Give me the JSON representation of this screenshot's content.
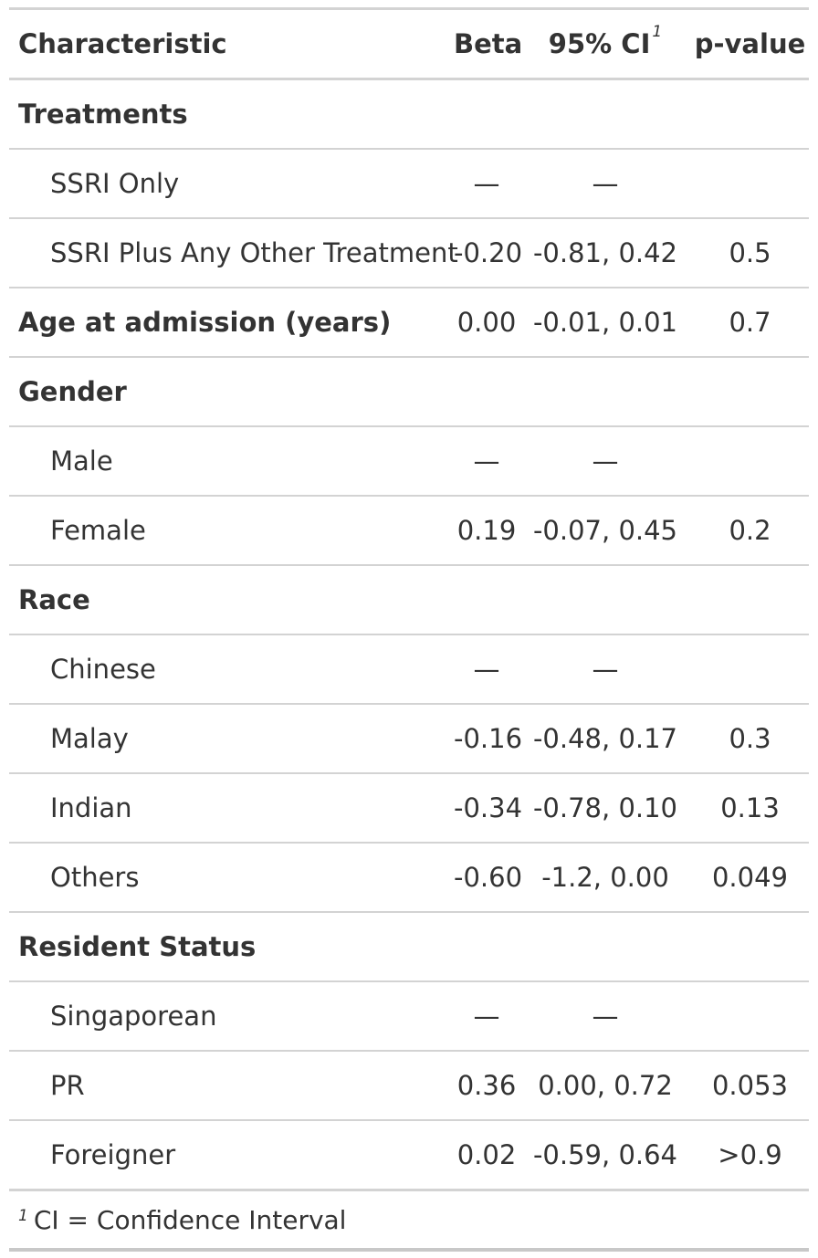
{
  "table": {
    "headers": {
      "characteristic": "Characteristic",
      "beta": "Beta",
      "ci": "95% CI",
      "ci_marker": "1",
      "pvalue": "p-value"
    },
    "rows": [
      {
        "label": "Treatments",
        "beta": "",
        "ci": "",
        "p": "",
        "level": "group"
      },
      {
        "label": "SSRI Only",
        "beta": "—",
        "ci": "—",
        "p": "",
        "level": "sub"
      },
      {
        "label": "SSRI Plus Any Other Treatment",
        "beta": "-0.20",
        "ci": "-0.81, 0.42",
        "p": "0.5",
        "level": "sub"
      },
      {
        "label": "Age at admission (years)",
        "beta": "0.00",
        "ci": "-0.01, 0.01",
        "p": "0.7",
        "level": "group"
      },
      {
        "label": "Gender",
        "beta": "",
        "ci": "",
        "p": "",
        "level": "group"
      },
      {
        "label": "Male",
        "beta": "—",
        "ci": "—",
        "p": "",
        "level": "sub"
      },
      {
        "label": "Female",
        "beta": "0.19",
        "ci": "-0.07, 0.45",
        "p": "0.2",
        "level": "sub"
      },
      {
        "label": "Race",
        "beta": "",
        "ci": "",
        "p": "",
        "level": "group"
      },
      {
        "label": "Chinese",
        "beta": "—",
        "ci": "—",
        "p": "",
        "level": "sub"
      },
      {
        "label": "Malay",
        "beta": "-0.16",
        "ci": "-0.48, 0.17",
        "p": "0.3",
        "level": "sub"
      },
      {
        "label": "Indian",
        "beta": "-0.34",
        "ci": "-0.78, 0.10",
        "p": "0.13",
        "level": "sub"
      },
      {
        "label": "Others",
        "beta": "-0.60",
        "ci": "-1.2, 0.00",
        "p": "0.049",
        "level": "sub"
      },
      {
        "label": "Resident Status",
        "beta": "",
        "ci": "",
        "p": "",
        "level": "group"
      },
      {
        "label": "Singaporean",
        "beta": "—",
        "ci": "—",
        "p": "",
        "level": "sub"
      },
      {
        "label": "PR",
        "beta": "0.36",
        "ci": "0.00, 0.72",
        "p": "0.053",
        "level": "sub"
      },
      {
        "label": "Foreigner",
        "beta": "0.02",
        "ci": "-0.59, 0.64",
        "p": ">0.9",
        "level": "sub"
      }
    ],
    "footnote": {
      "marker": "1",
      "text": "CI = Confidence Interval"
    }
  }
}
